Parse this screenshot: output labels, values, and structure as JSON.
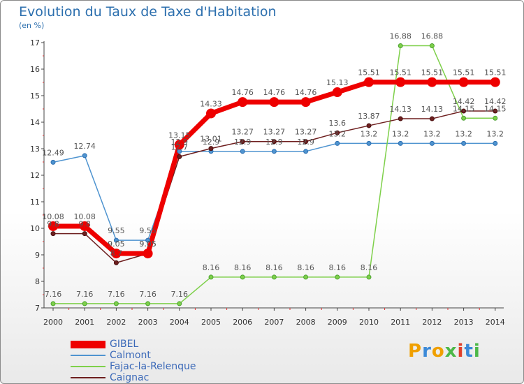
{
  "header": {
    "title": "Evolution du Taux de Taxe d'Habitation",
    "subtitle": "(en %)"
  },
  "brand": {
    "letters": [
      "P",
      "r",
      "o",
      "x",
      "i",
      "t",
      "i"
    ],
    "colors": [
      "#f0a000",
      "#3c8ad8",
      "#f0a000",
      "#4cb848",
      "#e0402a",
      "#3c8ad8",
      "#4cb848"
    ]
  },
  "chart_data": {
    "type": "line",
    "title": "Evolution du Taux de Taxe d'Habitation",
    "ylabel": "(en %)",
    "x": [
      "2000",
      "2001",
      "2002",
      "2003",
      "2004",
      "2005",
      "2006",
      "2007",
      "2008",
      "2009",
      "2010",
      "2011",
      "2012",
      "2013",
      "2014"
    ],
    "ylim": [
      7,
      17
    ],
    "yticks": [
      7,
      8,
      9,
      10,
      11,
      12,
      13,
      14,
      15,
      16,
      17
    ],
    "grid": false,
    "legend_position": "bottom-left",
    "series": [
      {
        "name": "GIBEL",
        "color": "#ee0000",
        "values": [
          10.08,
          10.08,
          9.05,
          9.05,
          13.15,
          14.33,
          14.76,
          14.76,
          14.76,
          15.13,
          15.51,
          15.51,
          15.51,
          15.51,
          15.51
        ],
        "labels": [
          "10.08",
          "10.08",
          "9.05",
          "9.05",
          "13.15",
          "14.33",
          "14.76",
          "14.76",
          "14.76",
          "15.13",
          "15.51",
          "15.51",
          "15.51",
          "15.51",
          "15.51"
        ]
      },
      {
        "name": "Calmont",
        "color": "#4f94d0",
        "values": [
          12.49,
          12.74,
          9.55,
          9.55,
          12.9,
          12.9,
          12.9,
          12.9,
          12.9,
          13.2,
          13.2,
          13.2,
          13.2,
          13.2,
          13.2
        ],
        "labels": [
          "12.49",
          "12.74",
          "9.55",
          "9.55",
          "12.9",
          "12.9",
          "12.9",
          "12.9",
          "12.9",
          "13.2",
          "13.2",
          "13.2",
          "13.2",
          "13.2",
          "13.2"
        ]
      },
      {
        "name": "Fajac-la-Relenque",
        "color": "#7ed04a",
        "values": [
          7.16,
          7.16,
          7.16,
          7.16,
          7.16,
          8.16,
          8.16,
          8.16,
          8.16,
          8.16,
          8.16,
          16.88,
          16.88,
          14.15,
          14.15
        ],
        "labels": [
          "7.16",
          "7.16",
          "7.16",
          "7.16",
          "7.16",
          "8.16",
          "8.16",
          "8.16",
          "8.16",
          "8.16",
          "8.16",
          "16.88",
          "16.88",
          "14.15",
          "14.15"
        ]
      },
      {
        "name": "Caignac",
        "color": "#6e1f1f",
        "values": [
          9.8,
          9.8,
          8.7,
          9.05,
          12.7,
          13.01,
          13.27,
          13.27,
          13.27,
          13.6,
          13.87,
          14.13,
          14.13,
          14.42,
          14.42
        ],
        "labels": [
          "9.8",
          "9.8",
          "8.7",
          "9.05",
          "12.7",
          "13.01",
          "13.27",
          "13.27",
          "13.27",
          "13.6",
          "13.87",
          "14.13",
          "14.13",
          "14.42",
          "14.42"
        ]
      }
    ]
  }
}
